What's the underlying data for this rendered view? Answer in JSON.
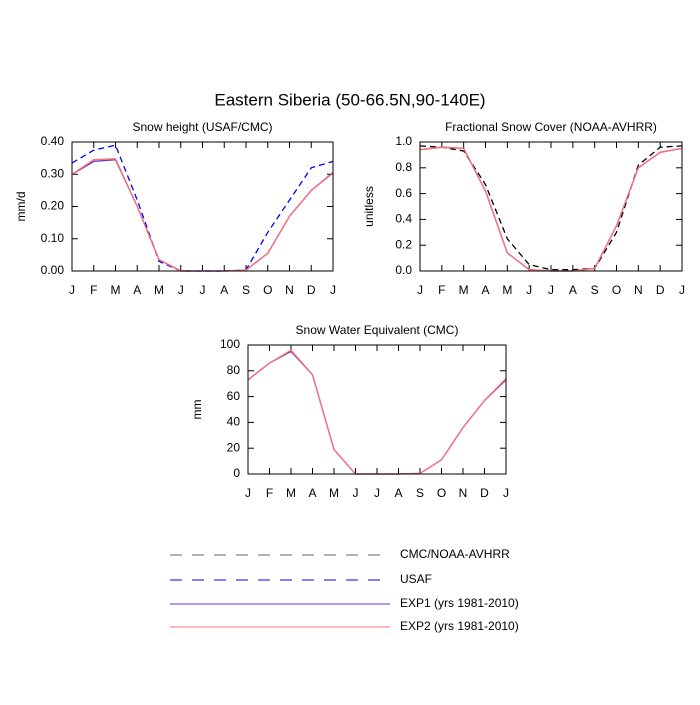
{
  "title": "Eastern Siberia (50-66.5N,90-140E)",
  "chart_data": [
    {
      "type": "line",
      "title": "Snow height (USAF/CMC)",
      "y_label": "mm/d",
      "categories": [
        "J",
        "F",
        "M",
        "A",
        "M",
        "J",
        "J",
        "A",
        "S",
        "O",
        "N",
        "D",
        "J"
      ],
      "ylim": [
        0,
        0.4
      ],
      "yticks": [
        {
          "value": 0,
          "label": "0.00"
        },
        {
          "value": 0.1,
          "label": "0.10"
        },
        {
          "value": 0.2,
          "label": "0.20"
        },
        {
          "value": 0.3,
          "label": "0.30"
        },
        {
          "value": 0.4,
          "label": "0.40"
        }
      ],
      "series": [
        {
          "name": "USAF",
          "color": "#0000ff",
          "dash": true,
          "values": [
            0.335,
            0.375,
            0.39,
            0.22,
            0.03,
            0,
            0,
            0,
            0.003,
            0.12,
            0.22,
            0.32,
            0.34
          ]
        },
        {
          "name": "EXP1 (yrs 1981-2010)",
          "color": "#6633cc",
          "dash": false,
          "values": [
            0.3,
            0.34,
            0.345,
            0.2,
            0.035,
            0,
            0,
            0,
            0.003,
            0.055,
            0.17,
            0.25,
            0.305
          ]
        },
        {
          "name": "EXP2 (yrs 1981-2010)",
          "color": "#ff7070",
          "dash": false,
          "values": [
            0.3,
            0.345,
            0.348,
            0.2,
            0.035,
            0,
            0,
            0,
            0.003,
            0.055,
            0.17,
            0.25,
            0.303
          ]
        }
      ]
    },
    {
      "type": "line",
      "title": "Fractional Snow Cover (NOAA-AVHRR)",
      "y_label": "unitless",
      "categories": [
        "J",
        "F",
        "M",
        "A",
        "M",
        "J",
        "J",
        "A",
        "S",
        "O",
        "N",
        "D",
        "J"
      ],
      "ylim": [
        0,
        1
      ],
      "yticks": [
        {
          "value": 0,
          "label": "0.0"
        },
        {
          "value": 0.2,
          "label": "0.2"
        },
        {
          "value": 0.4,
          "label": "0.4"
        },
        {
          "value": 0.6,
          "label": "0.6"
        },
        {
          "value": 0.8,
          "label": "0.8"
        },
        {
          "value": 1,
          "label": "1.0"
        }
      ],
      "series": [
        {
          "name": "CMC/NOAA-AVHRR",
          "color": "#000000",
          "dash": true,
          "values": [
            0.97,
            0.96,
            0.93,
            0.67,
            0.25,
            0.05,
            0.01,
            0.01,
            0.02,
            0.3,
            0.82,
            0.96,
            0.97
          ]
        },
        {
          "name": "EXP1 (yrs 1981-2010)",
          "color": "#6633cc",
          "dash": false,
          "values": [
            0.94,
            0.96,
            0.95,
            0.62,
            0.14,
            0.01,
            0,
            0,
            0.02,
            0.35,
            0.8,
            0.92,
            0.95
          ]
        },
        {
          "name": "EXP2 (yrs 1981-2010)",
          "color": "#ff7070",
          "dash": false,
          "values": [
            0.94,
            0.96,
            0.95,
            0.62,
            0.14,
            0.01,
            0,
            0,
            0.02,
            0.35,
            0.8,
            0.92,
            0.95
          ]
        }
      ]
    },
    {
      "type": "line",
      "title": "Snow Water Equivalent (CMC)",
      "y_label": "mm",
      "categories": [
        "J",
        "F",
        "M",
        "A",
        "M",
        "J",
        "J",
        "A",
        "S",
        "O",
        "N",
        "D",
        "J"
      ],
      "ylim": [
        0,
        100
      ],
      "yticks": [
        0,
        20,
        40,
        60,
        80,
        100
      ],
      "series": [
        {
          "name": "EXP1 (yrs 1981-2010)",
          "color": "#6633cc",
          "dash": false,
          "values": [
            73,
            86,
            95,
            77,
            19,
            0,
            0,
            0,
            0.5,
            11,
            36,
            57,
            73
          ]
        },
        {
          "name": "EXP2 (yrs 1981-2010)",
          "color": "#ff7070",
          "dash": false,
          "values": [
            73,
            86,
            96,
            77,
            19,
            0,
            0,
            0,
            0.5,
            11,
            36,
            57,
            74
          ]
        }
      ]
    }
  ]
}
